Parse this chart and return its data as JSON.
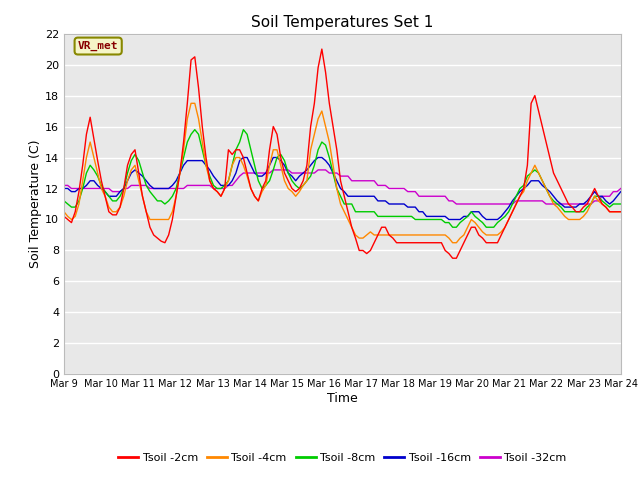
{
  "title": "Soil Temperatures Set 1",
  "xlabel": "Time",
  "ylabel": "Soil Temperature (C)",
  "annotation": "VR_met",
  "ylim": [
    0,
    22
  ],
  "yticks": [
    0,
    2,
    4,
    6,
    8,
    10,
    12,
    14,
    16,
    18,
    20,
    22
  ],
  "xtick_labels": [
    "Mar 9",
    "Mar 10",
    "Mar 11",
    "Mar 12",
    "Mar 13",
    "Mar 14",
    "Mar 15",
    "Mar 16",
    "Mar 17",
    "Mar 18",
    "Mar 19",
    "Mar 20",
    "Mar 21",
    "Mar 22",
    "Mar 23",
    "Mar 24"
  ],
  "fig_bg": "#ffffff",
  "plot_bg": "#e8e8e8",
  "grid_color": "#ffffff",
  "legend": [
    {
      "label": "Tsoil -2cm",
      "color": "#ff0000"
    },
    {
      "label": "Tsoil -4cm",
      "color": "#ff8800"
    },
    {
      "label": "Tsoil -8cm",
      "color": "#00cc00"
    },
    {
      "label": "Tsoil -16cm",
      "color": "#0000cc"
    },
    {
      "label": "Tsoil -32cm",
      "color": "#cc00cc"
    }
  ],
  "series": {
    "Tsoil_2cm": [
      10.2,
      10.0,
      9.8,
      10.5,
      11.8,
      13.5,
      15.5,
      16.6,
      15.2,
      13.8,
      12.5,
      11.5,
      10.5,
      10.3,
      10.3,
      10.8,
      12.0,
      13.5,
      14.2,
      14.5,
      13.0,
      11.5,
      10.5,
      9.5,
      9.0,
      8.8,
      8.6,
      8.5,
      9.0,
      10.0,
      11.5,
      13.0,
      15.0,
      17.5,
      20.3,
      20.5,
      18.5,
      16.0,
      14.0,
      12.5,
      12.0,
      11.8,
      11.5,
      12.0,
      14.5,
      14.2,
      14.5,
      14.5,
      14.0,
      13.0,
      12.0,
      11.5,
      11.2,
      12.0,
      12.5,
      14.5,
      16.0,
      15.5,
      14.0,
      13.0,
      12.5,
      12.0,
      11.8,
      12.0,
      12.5,
      13.5,
      16.0,
      17.5,
      19.8,
      21.0,
      19.5,
      17.5,
      16.0,
      14.5,
      12.5,
      11.5,
      10.5,
      9.5,
      8.8,
      8.0,
      8.0,
      7.8,
      8.0,
      8.5,
      9.0,
      9.5,
      9.5,
      9.0,
      8.8,
      8.5,
      8.5,
      8.5,
      8.5,
      8.5,
      8.5,
      8.5,
      8.5,
      8.5,
      8.5,
      8.5,
      8.5,
      8.5,
      8.0,
      7.8,
      7.5,
      7.5,
      8.0,
      8.5,
      9.0,
      9.5,
      9.5,
      9.0,
      8.8,
      8.5,
      8.5,
      8.5,
      8.5,
      9.0,
      9.5,
      10.0,
      10.5,
      11.0,
      11.5,
      12.0,
      13.5,
      17.5,
      18.0,
      17.0,
      16.0,
      15.0,
      14.0,
      13.0,
      12.5,
      12.0,
      11.5,
      11.0,
      10.8,
      10.5,
      10.5,
      10.8,
      11.0,
      11.5,
      12.0,
      11.5,
      11.0,
      10.8,
      10.5,
      10.5,
      10.5,
      10.5
    ],
    "Tsoil_4cm": [
      10.5,
      10.2,
      10.0,
      10.2,
      11.0,
      12.5,
      14.0,
      15.0,
      14.0,
      13.0,
      12.0,
      11.5,
      10.8,
      10.5,
      10.5,
      10.8,
      11.5,
      12.5,
      13.2,
      13.5,
      12.5,
      11.5,
      10.5,
      10.0,
      10.0,
      10.0,
      10.0,
      10.0,
      10.0,
      10.5,
      11.5,
      13.0,
      14.5,
      16.5,
      17.5,
      17.5,
      16.5,
      15.0,
      13.5,
      12.5,
      12.0,
      11.8,
      11.5,
      12.0,
      12.5,
      13.5,
      14.0,
      14.0,
      13.5,
      12.8,
      12.0,
      11.5,
      11.2,
      11.8,
      12.2,
      13.5,
      14.5,
      14.5,
      13.5,
      12.5,
      12.0,
      11.8,
      11.5,
      11.8,
      12.2,
      12.5,
      14.5,
      15.5,
      16.5,
      17.0,
      16.0,
      15.0,
      13.5,
      12.0,
      11.0,
      10.5,
      10.0,
      9.5,
      9.0,
      8.8,
      8.8,
      9.0,
      9.2,
      9.0,
      9.0,
      9.0,
      9.0,
      9.0,
      9.0,
      9.0,
      9.0,
      9.0,
      9.0,
      9.0,
      9.0,
      9.0,
      9.0,
      9.0,
      9.0,
      9.0,
      9.0,
      9.0,
      9.0,
      8.8,
      8.5,
      8.5,
      8.8,
      9.0,
      9.5,
      10.0,
      9.8,
      9.5,
      9.2,
      9.0,
      9.0,
      9.0,
      9.0,
      9.2,
      9.5,
      10.0,
      10.5,
      11.0,
      11.5,
      11.8,
      12.5,
      13.0,
      13.5,
      13.0,
      12.5,
      12.0,
      11.5,
      11.0,
      10.8,
      10.5,
      10.2,
      10.0,
      10.0,
      10.0,
      10.0,
      10.2,
      10.5,
      11.0,
      11.5,
      11.2,
      11.0,
      10.8,
      10.5,
      10.5,
      10.5,
      10.5
    ],
    "Tsoil_8cm": [
      11.2,
      11.0,
      10.8,
      10.8,
      11.2,
      12.0,
      13.0,
      13.5,
      13.2,
      12.8,
      12.2,
      11.8,
      11.5,
      11.2,
      11.2,
      11.5,
      12.0,
      13.0,
      13.8,
      14.2,
      13.8,
      13.0,
      12.2,
      11.8,
      11.5,
      11.2,
      11.2,
      11.0,
      11.2,
      11.5,
      12.0,
      13.0,
      14.0,
      15.0,
      15.5,
      15.8,
      15.5,
      14.5,
      13.5,
      12.8,
      12.2,
      12.0,
      12.0,
      12.2,
      12.5,
      13.5,
      14.5,
      15.0,
      15.8,
      15.5,
      14.5,
      13.5,
      12.5,
      12.0,
      12.2,
      12.5,
      13.2,
      14.0,
      14.2,
      13.8,
      13.0,
      12.5,
      12.2,
      12.0,
      12.2,
      12.5,
      12.8,
      13.5,
      14.5,
      15.0,
      14.8,
      14.0,
      13.0,
      12.0,
      11.5,
      11.0,
      11.0,
      11.0,
      10.5,
      10.5,
      10.5,
      10.5,
      10.5,
      10.5,
      10.2,
      10.2,
      10.2,
      10.2,
      10.2,
      10.2,
      10.2,
      10.2,
      10.2,
      10.2,
      10.0,
      10.0,
      10.0,
      10.0,
      10.0,
      10.0,
      10.0,
      10.0,
      9.8,
      9.8,
      9.5,
      9.5,
      9.8,
      10.0,
      10.2,
      10.5,
      10.2,
      10.0,
      9.8,
      9.5,
      9.5,
      9.5,
      9.8,
      10.0,
      10.2,
      10.5,
      11.0,
      11.5,
      12.0,
      12.2,
      12.8,
      13.0,
      13.2,
      13.0,
      12.5,
      12.0,
      11.5,
      11.2,
      11.0,
      10.8,
      10.5,
      10.5,
      10.5,
      10.5,
      10.5,
      10.5,
      10.8,
      11.0,
      11.5,
      11.5,
      11.2,
      11.0,
      10.8,
      11.0,
      11.0,
      11.0
    ],
    "Tsoil_16cm": [
      12.0,
      12.0,
      11.8,
      11.8,
      12.0,
      12.0,
      12.2,
      12.5,
      12.5,
      12.2,
      12.0,
      11.8,
      11.5,
      11.5,
      11.5,
      11.8,
      12.0,
      12.5,
      13.0,
      13.2,
      13.0,
      12.8,
      12.5,
      12.2,
      12.0,
      12.0,
      12.0,
      12.0,
      12.0,
      12.2,
      12.5,
      13.0,
      13.5,
      13.8,
      13.8,
      13.8,
      13.8,
      13.8,
      13.5,
      13.2,
      12.8,
      12.5,
      12.2,
      12.2,
      12.2,
      12.5,
      13.0,
      13.8,
      14.0,
      14.0,
      13.5,
      13.0,
      12.8,
      12.8,
      13.0,
      13.5,
      14.0,
      14.0,
      13.8,
      13.5,
      13.0,
      12.8,
      12.5,
      12.8,
      13.0,
      13.2,
      13.5,
      13.8,
      14.0,
      14.0,
      13.8,
      13.5,
      13.0,
      12.5,
      12.0,
      11.8,
      11.5,
      11.5,
      11.5,
      11.5,
      11.5,
      11.5,
      11.5,
      11.5,
      11.2,
      11.2,
      11.2,
      11.0,
      11.0,
      11.0,
      11.0,
      11.0,
      10.8,
      10.8,
      10.8,
      10.5,
      10.5,
      10.2,
      10.2,
      10.2,
      10.2,
      10.2,
      10.2,
      10.0,
      10.0,
      10.0,
      10.0,
      10.2,
      10.2,
      10.5,
      10.5,
      10.5,
      10.2,
      10.0,
      10.0,
      10.0,
      10.0,
      10.2,
      10.5,
      10.8,
      11.2,
      11.5,
      11.8,
      12.0,
      12.2,
      12.5,
      12.5,
      12.5,
      12.2,
      12.0,
      11.8,
      11.5,
      11.2,
      11.0,
      10.8,
      10.8,
      10.8,
      10.8,
      11.0,
      11.0,
      11.2,
      11.5,
      11.8,
      11.5,
      11.5,
      11.2,
      11.0,
      11.2,
      11.5,
      11.8
    ],
    "Tsoil_32cm": [
      12.2,
      12.2,
      12.0,
      12.0,
      12.0,
      12.0,
      12.0,
      12.0,
      12.0,
      12.0,
      12.0,
      12.0,
      12.0,
      11.8,
      11.8,
      11.8,
      12.0,
      12.0,
      12.2,
      12.2,
      12.2,
      12.2,
      12.2,
      12.0,
      12.0,
      12.0,
      12.0,
      12.0,
      12.0,
      12.0,
      12.0,
      12.0,
      12.0,
      12.2,
      12.2,
      12.2,
      12.2,
      12.2,
      12.2,
      12.2,
      12.0,
      12.0,
      12.0,
      12.0,
      12.2,
      12.2,
      12.5,
      12.8,
      13.0,
      13.0,
      13.0,
      13.0,
      13.0,
      13.0,
      13.0,
      13.0,
      13.2,
      13.2,
      13.2,
      13.2,
      13.2,
      13.0,
      13.0,
      13.0,
      13.0,
      13.0,
      13.0,
      13.0,
      13.2,
      13.2,
      13.2,
      13.0,
      13.0,
      13.0,
      12.8,
      12.8,
      12.8,
      12.5,
      12.5,
      12.5,
      12.5,
      12.5,
      12.5,
      12.5,
      12.2,
      12.2,
      12.2,
      12.0,
      12.0,
      12.0,
      12.0,
      12.0,
      11.8,
      11.8,
      11.8,
      11.5,
      11.5,
      11.5,
      11.5,
      11.5,
      11.5,
      11.5,
      11.5,
      11.2,
      11.2,
      11.0,
      11.0,
      11.0,
      11.0,
      11.0,
      11.0,
      11.0,
      11.0,
      11.0,
      11.0,
      11.0,
      11.0,
      11.0,
      11.0,
      11.0,
      11.0,
      11.2,
      11.2,
      11.2,
      11.2,
      11.2,
      11.2,
      11.2,
      11.2,
      11.0,
      11.0,
      11.0,
      11.0,
      11.0,
      11.0,
      11.0,
      11.0,
      11.0,
      11.0,
      11.0,
      11.0,
      11.0,
      11.2,
      11.2,
      11.5,
      11.5,
      11.5,
      11.8,
      11.8,
      12.0
    ]
  }
}
